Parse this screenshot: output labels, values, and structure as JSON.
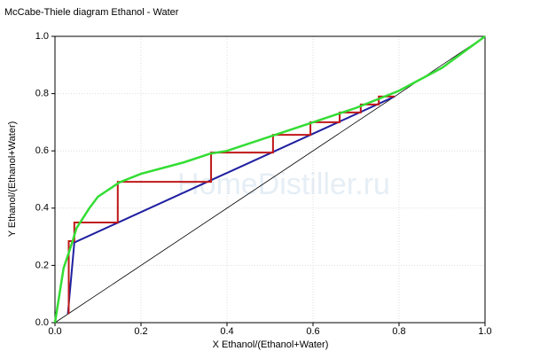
{
  "chart_data": {
    "type": "line",
    "title": "McCabe-Thiele diagram Ethanol - Water",
    "x_label": "X Ethanol/(Ethanol+Water)",
    "y_label": "Y Ethanol/(Ethanol+Water)",
    "watermark": "HomeDistiller.ru",
    "xlim": [
      0,
      1
    ],
    "ylim": [
      0,
      1
    ],
    "xticks": [
      {
        "value": 0,
        "label": "0.0"
      },
      0.2,
      0.4,
      0.6,
      0.8,
      {
        "value": 1,
        "label": "1.0"
      }
    ],
    "yticks": [
      {
        "value": 0,
        "label": "0.0"
      },
      0.2,
      0.4,
      0.6,
      0.8,
      {
        "value": 1,
        "label": "1.0"
      }
    ],
    "grid": true,
    "series": [
      {
        "color": "#000000",
        "width": 0.8,
        "x": [
          0,
          1
        ],
        "values": [
          0,
          1
        ]
      },
      {
        "color": "#2020a0",
        "width": 2,
        "x": [
          0.03,
          0.045,
          0.79
        ],
        "values": [
          0.03,
          0.28,
          0.79
        ]
      },
      {
        "color": "#c01818",
        "width": 2,
        "x": [
          0.79,
          0.753,
          0.753,
          0.711,
          0.711,
          0.662,
          0.662,
          0.594,
          0.594,
          0.507,
          0.507,
          0.363,
          0.363,
          0.146,
          0.146,
          0.045,
          0.045,
          0.032,
          0.032
        ],
        "values": [
          0.79,
          0.79,
          0.762,
          0.762,
          0.734,
          0.734,
          0.7,
          0.7,
          0.656,
          0.656,
          0.594,
          0.594,
          0.492,
          0.492,
          0.35,
          0.35,
          0.285,
          0.285,
          0.03
        ]
      },
      {
        "color": "#33dd33",
        "width": 2.5,
        "x": [
          0,
          0.02,
          0.04,
          0.05,
          0.08,
          0.1,
          0.15,
          0.2,
          0.3,
          0.36,
          0.4,
          0.5,
          0.6,
          0.7,
          0.8,
          0.9,
          1
        ],
        "values": [
          0,
          0.19,
          0.28,
          0.33,
          0.4,
          0.44,
          0.49,
          0.52,
          0.56,
          0.59,
          0.6,
          0.65,
          0.7,
          0.75,
          0.81,
          0.89,
          1
        ]
      }
    ]
  }
}
